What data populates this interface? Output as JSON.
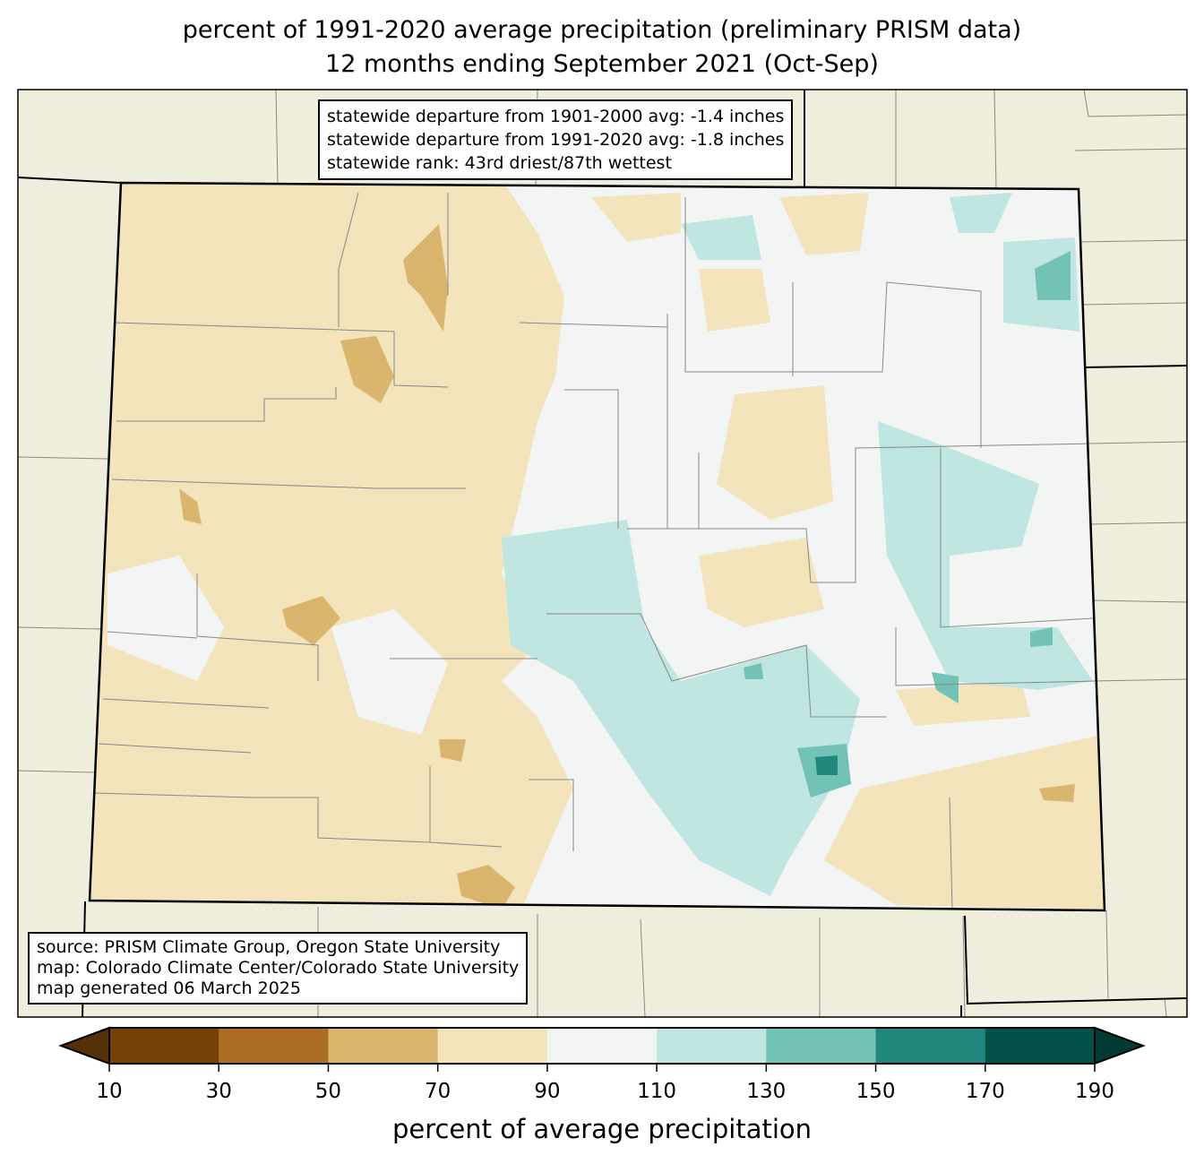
{
  "title_line1": "percent of 1991-2020 average precipitation (preliminary PRISM data)",
  "title_line2": "12 months ending September 2021 (Oct-Sep)",
  "stats": {
    "line1": "statewide departure from 1901-2000 avg: -1.4 inches",
    "line2": "statewide departure from 1991-2020 avg: -1.8 inches",
    "line3": "statewide rank: 43rd driest/87th wettest"
  },
  "credits": {
    "line1": "source: PRISM Climate Group, Oregon State University",
    "line2": "map: Colorado Climate Center/Colorado State University",
    "line3": "map generated 06 March 2025"
  },
  "colorbar": {
    "label": "percent of average precipitation",
    "ticks": [
      "10",
      "30",
      "50",
      "70",
      "90",
      "110",
      "130",
      "150",
      "170",
      "190"
    ],
    "colors": [
      "#744109",
      "#ab6e22",
      "#d9b56d",
      "#f3e4bc",
      "#f3f5f4",
      "#bfe6e1",
      "#72c2b6",
      "#22877e",
      "#02524a"
    ],
    "under_color": "#553108",
    "over_color": "#023b33"
  }
}
